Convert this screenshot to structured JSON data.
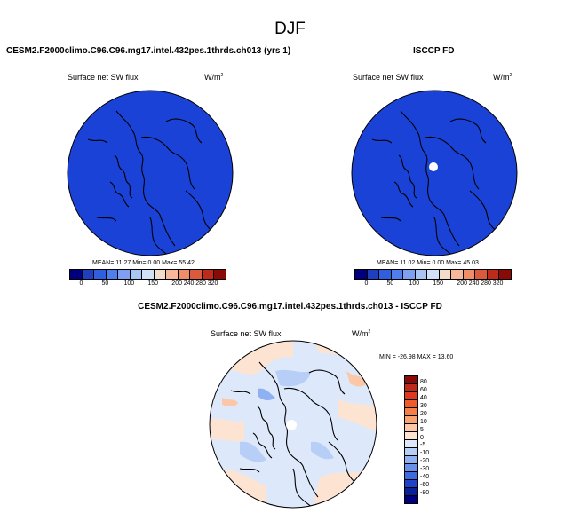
{
  "page": {
    "title": "DJF"
  },
  "panels": {
    "model": {
      "title": "CESM2.F2000climo.C96.C96.mg17.intel.432pes.1thrds.ch013 (yrs 1)",
      "variable": "Surface net SW flux",
      "units": "W/m",
      "units_exp": "2",
      "stats": "MEAN= 11.27  Min=   0.00  Max=  55.42",
      "fill_color": "#1b42d6"
    },
    "obs": {
      "title": "ISCCP FD",
      "variable": "Surface net SW flux",
      "units": "W/m",
      "units_exp": "2",
      "stats": "MEAN= 11.02  Min=   0.00  Max=  45.03",
      "fill_color": "#1b42d6"
    },
    "diff": {
      "title": "CESM2.F2000climo.C96.C96.mg17.intel.432pes.1thrds.ch013 - ISCCP FD",
      "variable": "Surface net SW flux",
      "units": "W/m",
      "units_exp": "2",
      "stats": "MIN = -26.98 MAX =  13.60"
    }
  },
  "chart_data": [
    {
      "type": "heatmap",
      "projection": "north-polar-stereographic",
      "title": "CESM2.F2000climo.C96.C96.mg17.intel.432pes.1thrds.ch013 (yrs 1)",
      "variable": "Surface net SW flux",
      "units": "W/m2",
      "stats": {
        "mean": 11.27,
        "min": 0.0,
        "max": 55.42
      },
      "colorbar": {
        "orientation": "horizontal",
        "tick_labels": [
          "0",
          "50",
          "100",
          "150",
          "200",
          "240",
          "280",
          "320"
        ],
        "colors": [
          "#00007f",
          "#1f3fbf",
          "#2f5fdf",
          "#4f7fef",
          "#7f9ff2",
          "#a9c5f2",
          "#d1e1f8",
          "#f4dccb",
          "#f6b79b",
          "#ef8c6a",
          "#db5a3d",
          "#bf2a1a",
          "#8a0a08"
        ]
      }
    },
    {
      "type": "heatmap",
      "projection": "north-polar-stereographic",
      "title": "ISCCP FD",
      "variable": "Surface net SW flux",
      "units": "W/m2",
      "stats": {
        "mean": 11.02,
        "min": 0.0,
        "max": 45.03
      },
      "colorbar": {
        "orientation": "horizontal",
        "tick_labels": [
          "0",
          "50",
          "100",
          "150",
          "200",
          "240",
          "280",
          "320"
        ],
        "colors": [
          "#00007f",
          "#1f3fbf",
          "#2f5fdf",
          "#4f7fef",
          "#7f9ff2",
          "#a9c5f2",
          "#d1e1f8",
          "#f4dccb",
          "#f6b79b",
          "#ef8c6a",
          "#db5a3d",
          "#bf2a1a",
          "#8a0a08"
        ]
      }
    },
    {
      "type": "heatmap",
      "projection": "north-polar-stereographic",
      "title": "CESM2.F2000climo.C96.C96.mg17.intel.432pes.1thrds.ch013 - ISCCP FD",
      "variable": "Surface net SW flux",
      "units": "W/m2",
      "stats": {
        "min": -26.98,
        "max": 13.6
      },
      "colorbar": {
        "orientation": "vertical",
        "tick_labels": [
          "80",
          "60",
          "40",
          "30",
          "20",
          "10",
          "5",
          "0",
          "-5",
          "-10",
          "-20",
          "-30",
          "-40",
          "-60",
          "-80"
        ],
        "colors": [
          "#8a0a08",
          "#bf2a1a",
          "#e0381e",
          "#f05a2a",
          "#f77f45",
          "#f9a272",
          "#fbc7a6",
          "#fde3d2",
          "#dde9fb",
          "#b7cff7",
          "#8fb0f2",
          "#6890eb",
          "#3c6ae0",
          "#1f42c8",
          "#0a1f9a",
          "#00007f"
        ]
      }
    }
  ]
}
